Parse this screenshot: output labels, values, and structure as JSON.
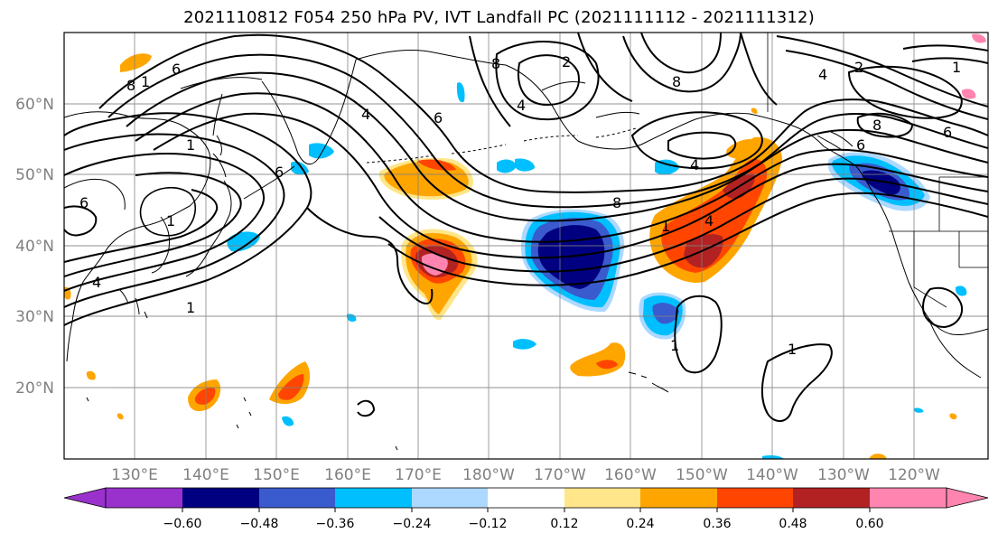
{
  "title": "2021110812 F054 250 hPa PV, IVT Landfall PC (2021111112 - 2021111312)",
  "latitude_labels": [
    "60°N",
    "50°N",
    "40°N",
    "30°N",
    "20°N"
  ],
  "longitude_labels": [
    "130°E",
    "140°E",
    "150°E",
    "160°E",
    "170°E",
    "180°W",
    "170°W",
    "160°W",
    "150°W",
    "140°W",
    "130°W",
    "120°W"
  ],
  "colorbar": {
    "colors": [
      "#9932CC",
      "#000080",
      "#3A5BCD",
      "#00BFFF",
      "#ADD8FF",
      "#FFFFFF",
      "#FFE68A",
      "#FFA500",
      "#FF4500",
      "#B22222",
      "#FF85B0"
    ],
    "tick_labels": [
      "−0.60",
      "−0.48",
      "−0.36",
      "−0.24",
      "−0.12",
      "0.12",
      "0.24",
      "0.36",
      "0.48",
      "0.60"
    ]
  },
  "contour_labels": [
    "6",
    "8",
    "1",
    "6",
    "4",
    "8",
    "4",
    "2",
    "1",
    "6",
    "6",
    "1",
    "8",
    "6",
    "2",
    "1",
    "4",
    "6",
    "8",
    "4",
    "1",
    "4",
    "8",
    "4",
    "1",
    "1",
    "1"
  ],
  "colors": {
    "grid": "#808080",
    "coast": "#000000",
    "contour": "#000000"
  }
}
